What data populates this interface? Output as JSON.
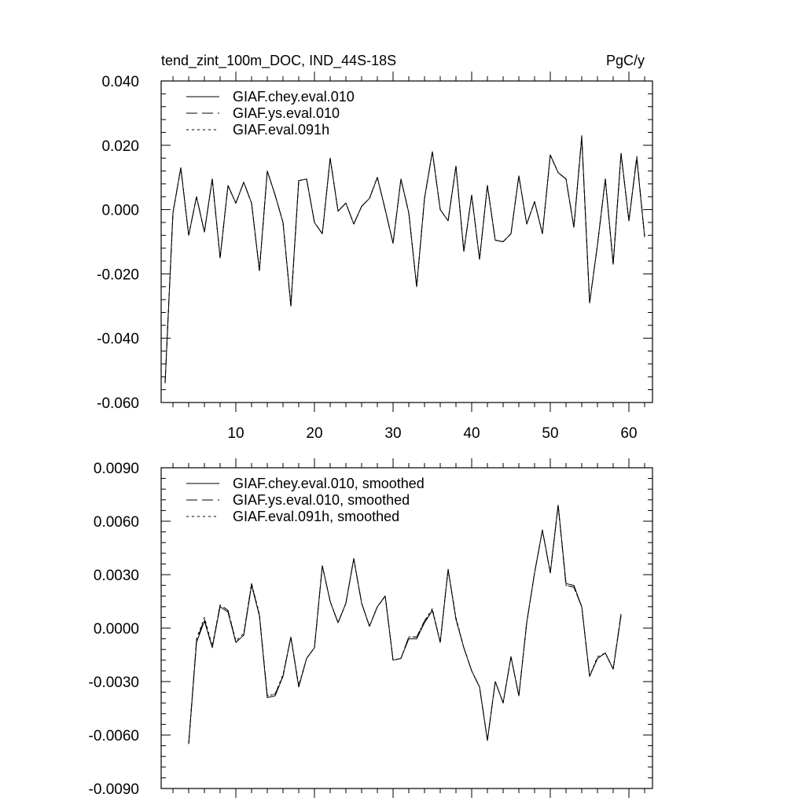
{
  "chart_data": [
    {
      "type": "line",
      "title": "tend_zint_100m_DOC, IND_44S-18S",
      "units": "PgC/y",
      "xlim": [
        0.5,
        63
      ],
      "ylim": [
        -0.06,
        0.04
      ],
      "x_ticks": [
        10,
        20,
        30,
        40,
        50,
        60
      ],
      "x_tick_labels": [
        "10",
        "20",
        "30",
        "40",
        "50",
        "60"
      ],
      "y_ticks": [
        -0.06,
        -0.04,
        -0.02,
        0.0,
        0.02,
        0.04
      ],
      "y_tick_labels": [
        "-0.060",
        "-0.040",
        "-0.020",
        "0.000",
        "0.020",
        "0.040"
      ],
      "grid": false,
      "legend_position": "top-left",
      "x": [
        1,
        2,
        3,
        4,
        5,
        6,
        7,
        8,
        9,
        10,
        11,
        12,
        13,
        14,
        15,
        16,
        17,
        18,
        19,
        20,
        21,
        22,
        23,
        24,
        25,
        26,
        27,
        28,
        29,
        30,
        31,
        32,
        33,
        34,
        35,
        36,
        37,
        38,
        39,
        40,
        41,
        42,
        43,
        44,
        45,
        46,
        47,
        48,
        49,
        50,
        51,
        52,
        53,
        54,
        55,
        56,
        57,
        58,
        59,
        60,
        61,
        62
      ],
      "series": [
        {
          "name": "GIAF.chey.eval.010",
          "dash": "solid",
          "values": [
            -0.054,
            -0.001,
            0.013,
            -0.008,
            0.004,
            -0.007,
            0.0095,
            -0.015,
            0.0075,
            0.002,
            0.0085,
            0.002,
            -0.019,
            0.012,
            0.0045,
            -0.004,
            -0.03,
            0.009,
            0.0095,
            -0.004,
            -0.0075,
            0.016,
            -0.0005,
            0.002,
            -0.0045,
            0.001,
            0.0035,
            0.01,
            0.0,
            -0.0105,
            0.0095,
            -0.001,
            -0.024,
            0.0035,
            0.018,
            0.0,
            -0.0035,
            0.0135,
            -0.013,
            0.0045,
            -0.0155,
            0.0075,
            -0.0095,
            -0.01,
            -0.0075,
            0.0105,
            -0.0045,
            0.0025,
            -0.0075,
            0.017,
            0.0115,
            0.0095,
            -0.0055,
            0.0225,
            -0.029,
            -0.011,
            0.0095,
            -0.017,
            0.0175,
            -0.0035,
            0.016,
            -0.0085
          ]
        },
        {
          "name": "GIAF.ys.eval.010",
          "dash": "long-dash",
          "values": [
            -0.054,
            -0.001,
            0.013,
            -0.008,
            0.004,
            -0.007,
            0.0095,
            -0.015,
            0.0075,
            0.002,
            0.0085,
            0.002,
            -0.019,
            0.012,
            0.0045,
            -0.004,
            -0.03,
            0.009,
            0.0095,
            -0.004,
            -0.0075,
            0.016,
            -0.0005,
            0.002,
            -0.0045,
            0.001,
            0.0035,
            0.01,
            0.0,
            -0.0105,
            0.0095,
            -0.001,
            -0.024,
            0.0035,
            0.018,
            0.0,
            -0.0035,
            0.0135,
            -0.013,
            0.0045,
            -0.0155,
            0.0075,
            -0.0095,
            -0.01,
            -0.0075,
            0.0105,
            -0.0045,
            0.0025,
            -0.0075,
            0.017,
            0.0115,
            0.0095,
            -0.0055,
            0.023,
            -0.029,
            -0.011,
            0.0095,
            -0.017,
            0.0175,
            -0.0035,
            0.0165,
            -0.0085
          ]
        },
        {
          "name": "GIAF.eval.091h",
          "dash": "short-dash",
          "values": [
            -0.054,
            -0.001,
            0.013,
            -0.008,
            0.004,
            -0.007,
            0.0095,
            -0.015,
            0.0075,
            0.002,
            0.0085,
            0.002,
            -0.019,
            0.012,
            0.0045,
            -0.004,
            -0.03,
            0.009,
            0.0095,
            -0.004,
            -0.0075,
            0.016,
            -0.0005,
            0.002,
            -0.0045,
            0.001,
            0.0035,
            0.01,
            0.0,
            -0.0105,
            0.0095,
            -0.001,
            -0.024,
            0.0035,
            0.018,
            0.0,
            -0.0035,
            0.0135,
            -0.013,
            0.0045,
            -0.0155,
            0.0075,
            -0.0095,
            -0.01,
            -0.0075,
            0.0105,
            -0.0045,
            0.0025,
            -0.0075,
            0.017,
            0.0115,
            0.0095,
            -0.0055,
            0.0225,
            -0.029,
            -0.011,
            0.0095,
            -0.017,
            0.0175,
            -0.0035,
            0.0165,
            -0.0085
          ]
        }
      ]
    },
    {
      "type": "line",
      "title": "",
      "xlim": [
        0.5,
        63
      ],
      "ylim": [
        -0.009,
        0.009
      ],
      "x_ticks": [
        10,
        20,
        30,
        40,
        50,
        60
      ],
      "y_ticks": [
        -0.009,
        -0.006,
        -0.003,
        0.0,
        0.003,
        0.006,
        0.009
      ],
      "y_tick_labels": [
        "-0.0090",
        "-0.0060",
        "-0.0030",
        "0.0000",
        "0.0030",
        "0.0060",
        "0.0090"
      ],
      "grid": false,
      "legend_position": "top-left",
      "x": [
        4,
        5,
        6,
        7,
        8,
        9,
        10,
        11,
        12,
        13,
        14,
        15,
        16,
        17,
        18,
        19,
        20,
        21,
        22,
        23,
        24,
        25,
        26,
        27,
        28,
        29,
        30,
        31,
        32,
        33,
        34,
        35,
        36,
        37,
        38,
        39,
        40,
        41,
        42,
        43,
        44,
        45,
        46,
        47,
        48,
        49,
        50,
        51,
        52,
        53,
        54,
        55,
        56,
        57,
        58,
        59
      ],
      "series": [
        {
          "name": "GIAF.chey.eval.010, smoothed",
          "dash": "solid",
          "values": [
            -0.0065,
            -0.0008,
            0.0004,
            -0.0011,
            0.0012,
            0.0009,
            -0.0008,
            -0.0004,
            0.0024,
            0.0007,
            -0.0039,
            -0.0038,
            -0.0027,
            -0.0005,
            -0.0033,
            -0.0017,
            -0.0011,
            0.0035,
            0.0015,
            0.0003,
            0.0014,
            0.0039,
            0.0014,
            0.0001,
            0.0012,
            0.0018,
            -0.0018,
            -0.0017,
            -0.0006,
            -0.0006,
            0.0003,
            0.001,
            -0.0008,
            0.0033,
            0.0005,
            -0.0011,
            -0.0024,
            -0.0033,
            -0.0063,
            -0.003,
            -0.0042,
            -0.0016,
            -0.0038,
            0.0003,
            0.0031,
            0.0055,
            0.0031,
            0.0069,
            0.0025,
            0.0024,
            0.0012,
            -0.0027,
            -0.0017,
            -0.0014,
            -0.0023,
            0.0007
          ]
        },
        {
          "name": "GIAF.ys.eval.010, smoothed",
          "dash": "long-dash",
          "values": [
            -0.0065,
            -0.0007,
            0.0005,
            -0.0011,
            0.0013,
            0.001,
            -0.0008,
            -0.0004,
            0.0025,
            0.0007,
            -0.0038,
            -0.0037,
            -0.0027,
            -0.0005,
            -0.0033,
            -0.0017,
            -0.0011,
            0.0035,
            0.0015,
            0.0003,
            0.0014,
            0.0039,
            0.0014,
            0.0001,
            0.0012,
            0.0018,
            -0.0018,
            -0.0017,
            -0.0005,
            -0.0005,
            0.0004,
            0.001,
            -0.0008,
            0.0033,
            0.0005,
            -0.0011,
            -0.0024,
            -0.0033,
            -0.0063,
            -0.003,
            -0.0042,
            -0.0016,
            -0.0038,
            0.0003,
            0.0031,
            0.0055,
            0.0031,
            0.0069,
            0.0024,
            0.0023,
            0.0012,
            -0.0027,
            -0.0017,
            -0.0014,
            -0.0023,
            0.0008
          ]
        },
        {
          "name": "GIAF.eval.091h, smoothed",
          "dash": "short-dash",
          "values": [
            -0.0065,
            -0.0006,
            0.0006,
            -0.001,
            0.0013,
            0.001,
            -0.0007,
            -0.0003,
            0.0025,
            0.0008,
            -0.0038,
            -0.0037,
            -0.0026,
            -0.0005,
            -0.0032,
            -0.0017,
            -0.0011,
            0.0035,
            0.0015,
            0.0003,
            0.0014,
            0.0039,
            0.0014,
            0.0001,
            0.0012,
            0.0018,
            -0.0018,
            -0.0017,
            -0.0005,
            -0.0005,
            0.0004,
            0.0011,
            -0.0008,
            0.0033,
            0.0006,
            -0.0011,
            -0.0024,
            -0.0033,
            -0.0063,
            -0.003,
            -0.0042,
            -0.0016,
            -0.0038,
            0.0003,
            0.0031,
            0.0055,
            0.0031,
            0.0069,
            0.0024,
            0.0023,
            0.0012,
            -0.0027,
            -0.0016,
            -0.0014,
            -0.0023,
            0.0008
          ]
        }
      ]
    }
  ]
}
